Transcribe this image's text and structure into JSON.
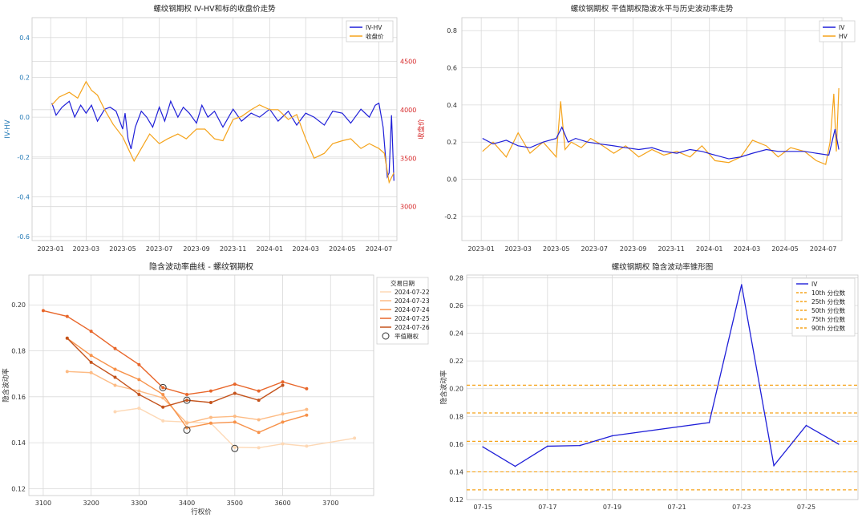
{
  "colors": {
    "iv": "#1f1fd8",
    "hv": "#f5a31a",
    "close": "#f5a31a",
    "right_axis": "#d62728",
    "left_axis": "#1f77b4",
    "quantile": "#f5a31a"
  },
  "chart_data": [
    {
      "id": "c1",
      "type": "line",
      "title": "螺纹钢期权 IV-HV和标的收盘价走势",
      "ylabel": "IV-HV",
      "ylabel_right": "收盘价",
      "x_ticks": [
        "2023-01",
        "2023-03",
        "2023-05",
        "2023-07",
        "2023-09",
        "2023-11",
        "2024-01",
        "2024-03",
        "2024-05",
        "2024-07"
      ],
      "ylim": [
        -0.62,
        0.5
      ],
      "yticks": [
        -0.6,
        -0.4,
        -0.2,
        0,
        0.2,
        0.4
      ],
      "ylim_right": [
        2650,
        4950
      ],
      "yticks_right": [
        3000,
        3500,
        4000,
        4500
      ],
      "xlim": [
        "2022-12-01",
        "2024-07-31"
      ],
      "series": [
        {
          "name": "IV-HV",
          "axis": "left",
          "x": [
            "2023-01-03",
            "2023-01-10",
            "2023-01-20",
            "2023-02-01",
            "2023-02-10",
            "2023-02-20",
            "2023-03-01",
            "2023-03-10",
            "2023-03-20",
            "2023-04-01",
            "2023-04-10",
            "2023-04-20",
            "2023-05-01",
            "2023-05-05",
            "2023-05-10",
            "2023-05-15",
            "2023-05-22",
            "2023-06-01",
            "2023-06-10",
            "2023-06-20",
            "2023-07-01",
            "2023-07-10",
            "2023-07-20",
            "2023-08-01",
            "2023-08-10",
            "2023-08-20",
            "2023-09-01",
            "2023-09-10",
            "2023-09-20",
            "2023-10-01",
            "2023-10-15",
            "2023-11-01",
            "2023-11-15",
            "2023-12-01",
            "2023-12-15",
            "2024-01-01",
            "2024-01-15",
            "2024-02-01",
            "2024-02-15",
            "2024-03-01",
            "2024-03-15",
            "2024-04-01",
            "2024-04-15",
            "2024-05-01",
            "2024-05-15",
            "2024-06-01",
            "2024-06-15",
            "2024-06-25",
            "2024-07-01",
            "2024-07-08",
            "2024-07-12",
            "2024-07-15",
            "2024-07-18",
            "2024-07-22",
            "2024-07-26"
          ],
          "y": [
            0.07,
            0.01,
            0.05,
            0.08,
            0.0,
            0.06,
            0.02,
            0.06,
            -0.02,
            0.04,
            0.05,
            0.03,
            -0.06,
            0.02,
            -0.11,
            -0.16,
            -0.05,
            0.03,
            0.0,
            -0.05,
            0.05,
            -0.02,
            0.08,
            0.0,
            0.05,
            0.02,
            -0.03,
            0.06,
            0.0,
            0.03,
            -0.05,
            0.04,
            -0.02,
            0.02,
            0.0,
            0.04,
            -0.02,
            0.03,
            -0.04,
            0.02,
            0.0,
            -0.04,
            0.03,
            0.02,
            -0.03,
            0.04,
            0.0,
            0.06,
            0.07,
            -0.05,
            -0.2,
            -0.3,
            -0.28,
            0.01,
            -0.32
          ]
        },
        {
          "name": "收盘价",
          "axis": "right",
          "x": [
            "2023-01-03",
            "2023-01-15",
            "2023-02-01",
            "2023-02-15",
            "2023-03-01",
            "2023-03-10",
            "2023-03-20",
            "2023-04-01",
            "2023-04-15",
            "2023-05-01",
            "2023-05-10",
            "2023-05-20",
            "2023-06-01",
            "2023-06-15",
            "2023-07-01",
            "2023-07-15",
            "2023-08-01",
            "2023-08-15",
            "2023-09-01",
            "2023-09-15",
            "2023-10-01",
            "2023-10-15",
            "2023-11-01",
            "2023-11-15",
            "2023-12-01",
            "2023-12-15",
            "2024-01-01",
            "2024-01-15",
            "2024-02-01",
            "2024-02-15",
            "2024-03-01",
            "2024-03-15",
            "2024-04-01",
            "2024-04-15",
            "2024-05-01",
            "2024-05-15",
            "2024-06-01",
            "2024-06-15",
            "2024-07-01",
            "2024-07-10",
            "2024-07-18",
            "2024-07-26"
          ],
          "y": [
            4050,
            4130,
            4180,
            4120,
            4290,
            4200,
            4150,
            4000,
            3850,
            3720,
            3600,
            3470,
            3600,
            3750,
            3650,
            3700,
            3750,
            3700,
            3800,
            3800,
            3700,
            3680,
            3900,
            3930,
            4000,
            4050,
            4000,
            4000,
            3900,
            3950,
            3700,
            3500,
            3550,
            3650,
            3680,
            3700,
            3600,
            3650,
            3600,
            3550,
            3250,
            3350
          ]
        }
      ],
      "legend": [
        "IV-HV",
        "收盘价"
      ]
    },
    {
      "id": "c2",
      "type": "line",
      "title": "螺纹钢期权 平值期权隐波水平与历史波动率走势",
      "x_ticks": [
        "2023-01",
        "2023-03",
        "2023-05",
        "2023-07",
        "2023-09",
        "2023-11",
        "2024-01",
        "2024-03",
        "2024-05",
        "2024-07"
      ],
      "ylim": [
        -0.33,
        0.87
      ],
      "yticks": [
        -0.2,
        0,
        0.2,
        0.4,
        0.6,
        0.8
      ],
      "xlim": [
        "2022-12-01",
        "2024-07-31"
      ],
      "series": [
        {
          "name": "IV",
          "x": [
            "2023-01-03",
            "2023-01-20",
            "2023-02-10",
            "2023-03-01",
            "2023-03-20",
            "2023-04-10",
            "2023-05-01",
            "2023-05-10",
            "2023-05-20",
            "2023-06-01",
            "2023-06-20",
            "2023-07-10",
            "2023-08-01",
            "2023-08-20",
            "2023-09-10",
            "2023-10-01",
            "2023-10-20",
            "2023-11-10",
            "2023-12-01",
            "2023-12-20",
            "2024-01-10",
            "2024-02-01",
            "2024-02-20",
            "2024-03-10",
            "2024-04-01",
            "2024-04-20",
            "2024-05-10",
            "2024-06-01",
            "2024-06-20",
            "2024-07-10",
            "2024-07-20",
            "2024-07-26"
          ],
          "y": [
            0.22,
            0.19,
            0.21,
            0.18,
            0.17,
            0.2,
            0.22,
            0.28,
            0.2,
            0.22,
            0.2,
            0.19,
            0.18,
            0.17,
            0.16,
            0.17,
            0.15,
            0.14,
            0.16,
            0.15,
            0.13,
            0.11,
            0.12,
            0.14,
            0.16,
            0.15,
            0.15,
            0.15,
            0.14,
            0.13,
            0.27,
            0.16
          ]
        },
        {
          "name": "HV",
          "x": [
            "2023-01-03",
            "2023-01-20",
            "2023-02-10",
            "2023-03-01",
            "2023-03-20",
            "2023-04-10",
            "2023-05-01",
            "2023-05-08",
            "2023-05-15",
            "2023-05-25",
            "2023-06-10",
            "2023-06-25",
            "2023-07-10",
            "2023-08-01",
            "2023-08-20",
            "2023-09-10",
            "2023-10-01",
            "2023-10-20",
            "2023-11-10",
            "2023-12-01",
            "2023-12-20",
            "2024-01-10",
            "2024-02-01",
            "2024-02-20",
            "2024-03-10",
            "2024-04-01",
            "2024-04-20",
            "2024-05-10",
            "2024-06-01",
            "2024-06-20",
            "2024-07-05",
            "2024-07-12",
            "2024-07-18",
            "2024-07-22",
            "2024-07-26"
          ],
          "y": [
            0.15,
            0.2,
            0.12,
            0.25,
            0.14,
            0.2,
            0.12,
            0.42,
            0.16,
            0.2,
            0.17,
            0.22,
            0.19,
            0.14,
            0.18,
            0.12,
            0.16,
            0.13,
            0.15,
            0.12,
            0.18,
            0.1,
            0.09,
            0.12,
            0.21,
            0.18,
            0.12,
            0.17,
            0.15,
            0.1,
            0.08,
            0.2,
            0.46,
            0.15,
            0.49
          ]
        }
      ],
      "legend": [
        "IV",
        "HV"
      ]
    },
    {
      "id": "c3",
      "type": "line",
      "title": "隐含波动率曲线 - 螺纹钢期权",
      "xlabel": "行权价",
      "ylabel": "隐含波动率",
      "xlim": [
        3070,
        3790
      ],
      "xticks": [
        3100,
        3200,
        3300,
        3400,
        3500,
        3600,
        3700
      ],
      "ylim": [
        0.117,
        0.213
      ],
      "yticks": [
        0.12,
        0.14,
        0.16,
        0.18,
        0.2
      ],
      "legend_title": "交易日期",
      "series": [
        {
          "name": "2024-07-22",
          "color": "#fdd8b5",
          "x": [
            3250,
            3300,
            3350,
            3400,
            3450,
            3500,
            3550,
            3600,
            3650,
            3750
          ],
          "y": [
            0.1535,
            0.155,
            0.1495,
            0.149,
            0.1485,
            0.138,
            0.1378,
            0.1395,
            0.1385,
            0.142
          ]
        },
        {
          "name": "2024-07-23",
          "color": "#fdbb84",
          "x": [
            3150,
            3200,
            3250,
            3300,
            3350,
            3400,
            3450,
            3500,
            3550,
            3600,
            3650
          ],
          "y": [
            0.171,
            0.1705,
            0.165,
            0.1625,
            0.1595,
            0.1485,
            0.151,
            0.1515,
            0.15,
            0.1525,
            0.1545
          ]
        },
        {
          "name": "2024-07-24",
          "color": "#f7924a",
          "x": [
            3150,
            3200,
            3250,
            3300,
            3350,
            3400,
            3450,
            3500,
            3550,
            3600,
            3650
          ],
          "y": [
            0.1855,
            0.178,
            0.172,
            0.1675,
            0.161,
            0.1465,
            0.1485,
            0.149,
            0.1445,
            0.149,
            0.152
          ]
        },
        {
          "name": "2024-07-25",
          "color": "#e8662a",
          "x": [
            3100,
            3150,
            3200,
            3250,
            3300,
            3350,
            3400,
            3450,
            3500,
            3550,
            3600,
            3650
          ],
          "y": [
            0.1975,
            0.195,
            0.1885,
            0.181,
            0.174,
            0.164,
            0.161,
            0.1625,
            0.1655,
            0.1625,
            0.1665,
            0.1635
          ]
        },
        {
          "name": "2024-07-26",
          "color": "#c4531c",
          "x": [
            3150,
            3200,
            3250,
            3300,
            3350,
            3400,
            3450,
            3500,
            3550,
            3600
          ],
          "y": [
            0.1855,
            0.175,
            0.1685,
            0.161,
            0.1555,
            0.1585,
            0.1575,
            0.1615,
            0.1585,
            0.165
          ]
        }
      ],
      "atm": {
        "name": "平值期权",
        "x": [
          3350,
          3400,
          3400,
          3500
        ],
        "y": [
          0.164,
          0.1585,
          0.1455,
          0.1375
        ]
      },
      "legend": [
        "2024-07-22",
        "2024-07-23",
        "2024-07-24",
        "2024-07-25",
        "2024-07-26",
        "平值期权"
      ]
    },
    {
      "id": "c4",
      "type": "line",
      "title": "螺纹钢期权 隐含波动率锥形图",
      "ylabel": "隐含波动率",
      "x": [
        "07-15",
        "07-16",
        "07-17",
        "07-18",
        "07-19",
        "07-22",
        "07-23",
        "07-24",
        "07-25",
        "07-26"
      ],
      "x_pos": [
        0,
        1,
        2,
        3,
        4,
        7,
        8,
        9,
        10,
        11
      ],
      "xticks": [
        "07-15",
        "07-17",
        "07-19",
        "07-21",
        "07-23",
        "07-25"
      ],
      "xticks_pos": [
        0,
        2,
        4,
        6,
        8,
        10
      ],
      "xlim": [
        -0.5,
        11.6
      ],
      "ylim": [
        0.12,
        0.282
      ],
      "yticks": [
        0.12,
        0.14,
        0.16,
        0.18,
        0.2,
        0.22,
        0.24,
        0.26,
        0.28
      ],
      "series": [
        {
          "name": "IV",
          "y": [
            0.158,
            0.144,
            0.1585,
            0.159,
            0.166,
            0.1755,
            0.275,
            0.1445,
            0.1735,
            0.16
          ]
        }
      ],
      "quantiles": [
        {
          "name": "10th 分位数",
          "value": 0.127
        },
        {
          "name": "25th 分位数",
          "value": 0.14
        },
        {
          "name": "50th 分位数",
          "value": 0.162
        },
        {
          "name": "75th 分位数",
          "value": 0.1825
        },
        {
          "name": "90th 分位数",
          "value": 0.2025
        }
      ],
      "legend": [
        "IV",
        "10th 分位数",
        "25th 分位数",
        "50th 分位数",
        "75th 分位数",
        "90th 分位数"
      ]
    }
  ]
}
